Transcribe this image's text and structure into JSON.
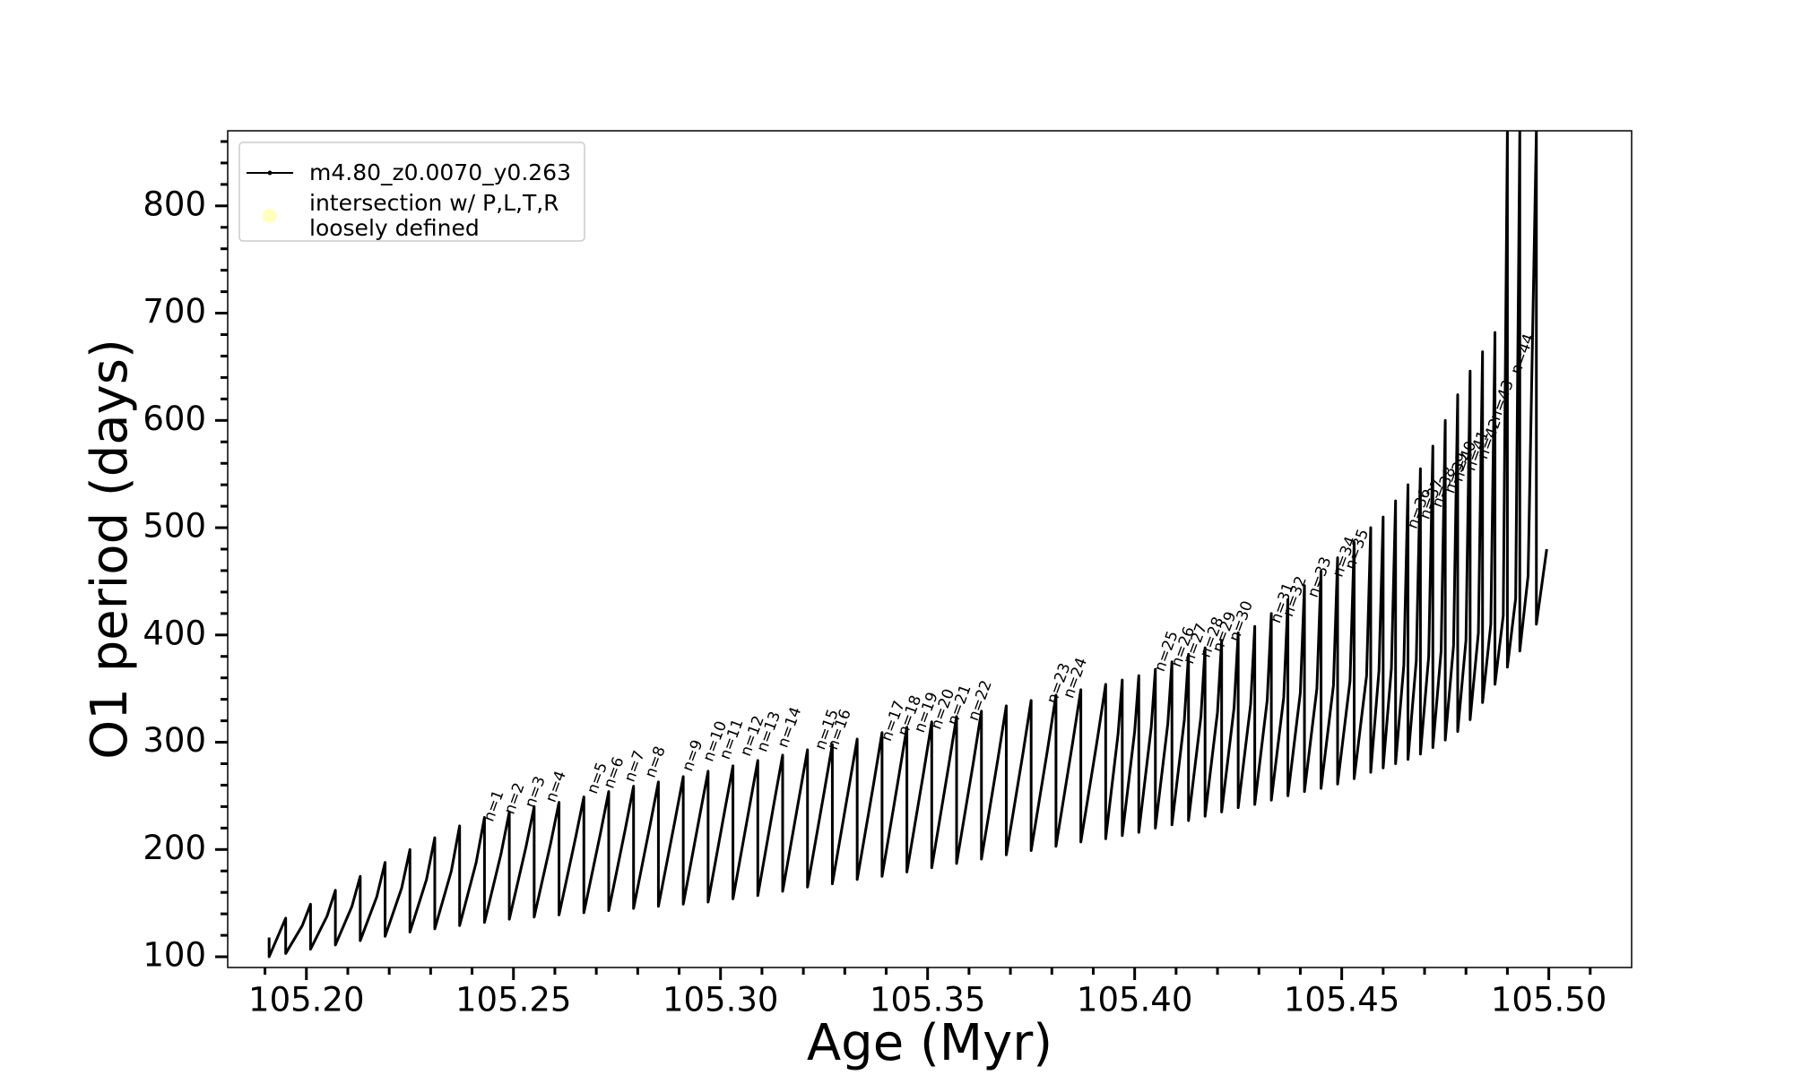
{
  "chart_data": {
    "type": "line",
    "xlabel": "Age (Myr)",
    "ylabel": "O1 period (days)",
    "xlim": [
      105.181,
      105.52
    ],
    "ylim": [
      90,
      870
    ],
    "xticks": [
      {
        "value": 105.2,
        "label": "105.20"
      },
      {
        "value": 105.25,
        "label": "105.25"
      },
      {
        "value": 105.3,
        "label": "105.30"
      },
      {
        "value": 105.35,
        "label": "105.35"
      },
      {
        "value": 105.4,
        "label": "105.40"
      },
      {
        "value": 105.45,
        "label": "105.45"
      },
      {
        "value": 105.5,
        "label": "105.50"
      }
    ],
    "yticks": [
      100,
      200,
      300,
      400,
      500,
      600,
      700,
      800
    ],
    "minor_xticks": [
      105.19,
      105.21,
      105.22,
      105.23,
      105.24,
      105.26,
      105.27,
      105.28,
      105.29,
      105.31,
      105.32,
      105.33,
      105.34,
      105.36,
      105.37,
      105.38,
      105.39,
      105.41,
      105.42,
      105.43,
      105.44,
      105.46,
      105.47,
      105.48,
      105.49,
      105.51
    ],
    "minor_yticks": [
      120,
      140,
      160,
      180,
      220,
      240,
      260,
      280,
      320,
      340,
      360,
      380,
      420,
      440,
      460,
      480,
      520,
      540,
      560,
      580,
      620,
      640,
      660,
      680,
      720,
      740,
      760,
      780,
      820,
      840,
      860
    ],
    "legend": "upper left",
    "series": [
      {
        "name": "m4.80_z0.0070_y0.263",
        "color": "#000000",
        "x": [
          105.191,
          105.191,
          105.195,
          105.195,
          105.199,
          105.201,
          105.201,
          105.205,
          105.207,
          105.207,
          105.211,
          105.213,
          105.213,
          105.217,
          105.219,
          105.219,
          105.223,
          105.225,
          105.225,
          105.229,
          105.231,
          105.231,
          105.235,
          105.237,
          105.237,
          105.241,
          105.243,
          105.243,
          105.247,
          105.249,
          105.249,
          105.253,
          105.255,
          105.255,
          105.259,
          105.261,
          105.261,
          105.265,
          105.267,
          105.267,
          105.271,
          105.273,
          105.273,
          105.277,
          105.279,
          105.279,
          105.283,
          105.285,
          105.285,
          105.289,
          105.291,
          105.291,
          105.295,
          105.297,
          105.297,
          105.301,
          105.303,
          105.303,
          105.307,
          105.309,
          105.309,
          105.313,
          105.315,
          105.315,
          105.319,
          105.321,
          105.321,
          105.325,
          105.327,
          105.327,
          105.331,
          105.333,
          105.333,
          105.337,
          105.339,
          105.339,
          105.343,
          105.345,
          105.345,
          105.349,
          105.351,
          105.351,
          105.355,
          105.357,
          105.357,
          105.361,
          105.363,
          105.363,
          105.367,
          105.369,
          105.369,
          105.373,
          105.375,
          105.375,
          105.379,
          105.381,
          105.381,
          105.385,
          105.387,
          105.387,
          105.391,
          105.393,
          105.393,
          105.396,
          105.397,
          105.397,
          105.4,
          105.401,
          105.401,
          105.404,
          105.405,
          105.405,
          105.408,
          105.409,
          105.409,
          105.412,
          105.413,
          105.413,
          105.416,
          105.417,
          105.417,
          105.42,
          105.421,
          105.421,
          105.424,
          105.425,
          105.425,
          105.428,
          105.429,
          105.429,
          105.432,
          105.433,
          105.433,
          105.436,
          105.437,
          105.437,
          105.44,
          105.441,
          105.441,
          105.444,
          105.445,
          105.445,
          105.448,
          105.449,
          105.449,
          105.452,
          105.453,
          105.453,
          105.456,
          105.457,
          105.457,
          105.459,
          105.46,
          105.46,
          105.462,
          105.463,
          105.463,
          105.465,
          105.466,
          105.466,
          105.468,
          105.469,
          105.469,
          105.471,
          105.472,
          105.472,
          105.474,
          105.475,
          105.475,
          105.477,
          105.478,
          105.478,
          105.48,
          105.481,
          105.481,
          105.483,
          105.484,
          105.484,
          105.486,
          105.487,
          105.487,
          105.489,
          105.49,
          105.49,
          105.492,
          105.493,
          105.493,
          105.495,
          105.497,
          105.497,
          105.4995
        ],
        "values": [
          118,
          100,
          136,
          103,
          129,
          149,
          107,
          138,
          162,
          111,
          147,
          175,
          115,
          156,
          188,
          119,
          164,
          200,
          123,
          172,
          211,
          126,
          180,
          222,
          129,
          188,
          230,
          132,
          196,
          235,
          135,
          202,
          240,
          137,
          206,
          244,
          139,
          211,
          249,
          141,
          215,
          254,
          143,
          219,
          259,
          145,
          223,
          263,
          147,
          227,
          268,
          149,
          232,
          273,
          151,
          236,
          278,
          154,
          240,
          283,
          157,
          245,
          288,
          161,
          249,
          293,
          165,
          253,
          298,
          168,
          258,
          303,
          172,
          262,
          309,
          175,
          267,
          314,
          179,
          271,
          319,
          183,
          276,
          324,
          187,
          280,
          329,
          191,
          285,
          334,
          195,
          289,
          339,
          199,
          294,
          344,
          203,
          299,
          349,
          207,
          303,
          354,
          210,
          308,
          358,
          213,
          310,
          362,
          216,
          314,
          368,
          220,
          317,
          375,
          223,
          321,
          382,
          227,
          324,
          388,
          231,
          328,
          395,
          235,
          332,
          402,
          239,
          335,
          408,
          242,
          339,
          420,
          246,
          342,
          433,
          250,
          346,
          446,
          254,
          350,
          459,
          257,
          353,
          472,
          261,
          357,
          486,
          266,
          362,
          500,
          272,
          367,
          510,
          276,
          369,
          525,
          280,
          372,
          540,
          284,
          376,
          555,
          289,
          380,
          576,
          295,
          385,
          600,
          302,
          390,
          624,
          310,
          395,
          646,
          321,
          402,
          664,
          337,
          410,
          682,
          354,
          418,
          870,
          370,
          434,
          870,
          385,
          455,
          870,
          410,
          480
        ]
      },
      {
        "name": "intersection w/ P,L,T,R\nloosely defined",
        "color": "#ffffc0",
        "type": "scatter"
      }
    ],
    "annotations": [
      {
        "text": "n=1",
        "x": 105.245,
        "y": 225
      },
      {
        "text": "n=2",
        "x": 105.25,
        "y": 232
      },
      {
        "text": "n=3",
        "x": 105.255,
        "y": 238
      },
      {
        "text": "n=4",
        "x": 105.26,
        "y": 243
      },
      {
        "text": "n=5",
        "x": 105.27,
        "y": 251
      },
      {
        "text": "n=6",
        "x": 105.274,
        "y": 256
      },
      {
        "text": "n=7",
        "x": 105.279,
        "y": 262
      },
      {
        "text": "n=8",
        "x": 105.284,
        "y": 266
      },
      {
        "text": "n=9",
        "x": 105.293,
        "y": 272
      },
      {
        "text": "n=10",
        "x": 105.298,
        "y": 281
      },
      {
        "text": "n=11",
        "x": 105.302,
        "y": 283
      },
      {
        "text": "n=12",
        "x": 105.307,
        "y": 286
      },
      {
        "text": "n=13",
        "x": 105.311,
        "y": 290
      },
      {
        "text": "n=14",
        "x": 105.316,
        "y": 294
      },
      {
        "text": "n=15",
        "x": 105.325,
        "y": 292
      },
      {
        "text": "n=16",
        "x": 105.328,
        "y": 292
      },
      {
        "text": "n=17",
        "x": 105.341,
        "y": 300
      },
      {
        "text": "n=18",
        "x": 105.345,
        "y": 305
      },
      {
        "text": "n=19",
        "x": 105.349,
        "y": 308
      },
      {
        "text": "n=20",
        "x": 105.353,
        "y": 311
      },
      {
        "text": "n=21",
        "x": 105.357,
        "y": 315
      },
      {
        "text": "n=22",
        "x": 105.362,
        "y": 319
      },
      {
        "text": "n=23",
        "x": 105.381,
        "y": 335
      },
      {
        "text": "n=24",
        "x": 105.385,
        "y": 340
      },
      {
        "text": "n=25",
        "x": 105.407,
        "y": 365
      },
      {
        "text": "n=26",
        "x": 105.411,
        "y": 369
      },
      {
        "text": "n=27",
        "x": 105.414,
        "y": 372
      },
      {
        "text": "n=28",
        "x": 105.418,
        "y": 378
      },
      {
        "text": "n=29",
        "x": 105.421,
        "y": 383
      },
      {
        "text": "n=30",
        "x": 105.425,
        "y": 393
      },
      {
        "text": "n=31",
        "x": 105.435,
        "y": 410
      },
      {
        "text": "n=32",
        "x": 105.438,
        "y": 416
      },
      {
        "text": "n=33",
        "x": 105.444,
        "y": 434
      },
      {
        "text": "n=34",
        "x": 105.45,
        "y": 453
      },
      {
        "text": "n=35",
        "x": 105.453,
        "y": 460
      },
      {
        "text": "n=36",
        "x": 105.468,
        "y": 498
      },
      {
        "text": "n=37",
        "x": 105.471,
        "y": 507
      },
      {
        "text": "n=38",
        "x": 105.474,
        "y": 518
      },
      {
        "text": "n=39",
        "x": 105.477,
        "y": 531
      },
      {
        "text": "n=40",
        "x": 105.479,
        "y": 542
      },
      {
        "text": "n=41",
        "x": 105.482,
        "y": 552
      },
      {
        "text": "n=42",
        "x": 105.485,
        "y": 563
      },
      {
        "text": "n=43",
        "x": 105.488,
        "y": 599
      },
      {
        "text": "n=44",
        "x": 105.493,
        "y": 642
      }
    ]
  }
}
